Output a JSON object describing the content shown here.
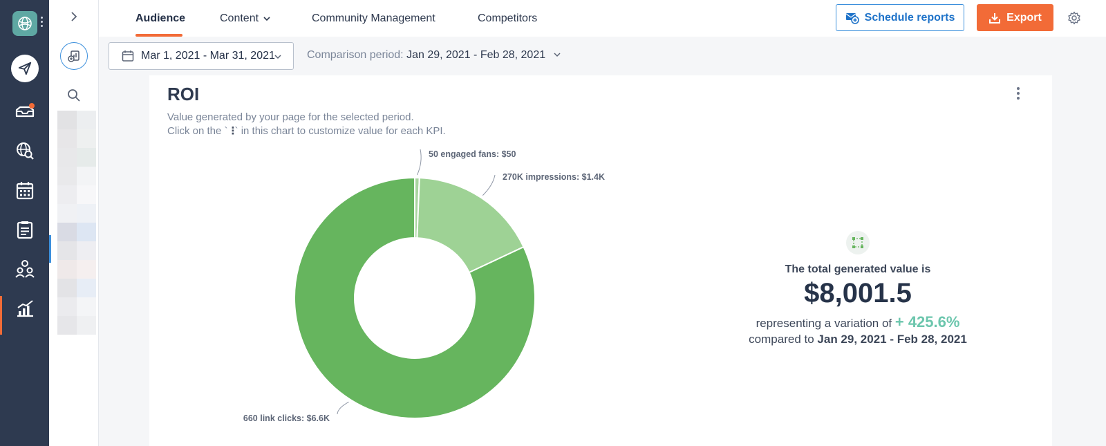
{
  "nav": {
    "tabs": [
      {
        "label": "Audience",
        "active": true
      },
      {
        "label": "Content"
      },
      {
        "label": "Community Management"
      },
      {
        "label": "Competitors"
      }
    ],
    "schedule_label": "Schedule reports",
    "export_label": "Export"
  },
  "filters": {
    "date_range": "Mar 1, 2021 - Mar 31, 2021",
    "comparison_label": "Comparison period:",
    "comparison_value": "Jan 29, 2021 - Feb 28, 2021"
  },
  "card": {
    "title": "ROI",
    "subtitle_line1": "Value generated by your page for the selected period.",
    "subtitle_line2_pre": "Click on the `",
    "subtitle_line2_post": "` in this chart to customize value for each KPI."
  },
  "summary": {
    "label": "The total generated value is",
    "value": "$8,001.5",
    "variation_text": "representing a variation of",
    "variation_value": "+ 425.6%",
    "compared_text": "compared to",
    "compared_value": "Jan 29, 2021 - Feb 28, 2021"
  },
  "colors": {
    "accent_orange": "#f26b37",
    "accent_blue": "#3b8fdc",
    "rail": "#2e3a50",
    "variation_green": "#6cc6ad"
  },
  "chart_data": {
    "type": "pie",
    "donut": true,
    "categories": [
      "50 engaged fans: $50",
      "270K impressions: $1.4K",
      "660 link clicks: $6.6K"
    ],
    "values": [
      50,
      1400,
      6600
    ],
    "colors": [
      "#a8d49f",
      "#9ed295",
      "#66b55e"
    ]
  }
}
